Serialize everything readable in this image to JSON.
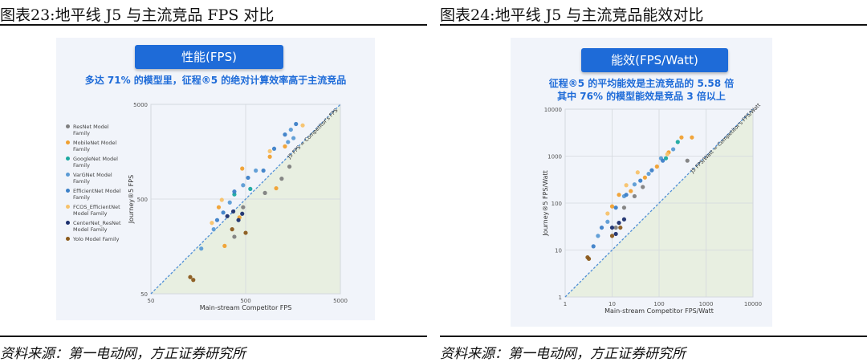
{
  "figures": [
    {
      "title": "图表23:地平线 J5 与主流竞品 FPS 对比",
      "source": "资料来源：第一电动网，方正证券研究所",
      "panel_title": "性能(FPS)",
      "subtitle_lines": [
        "多达 71% 的模型里，征程®5 的绝对计算效率高于主流竞品"
      ],
      "legend": [
        "ResNet Model Family",
        "MobileNet Model Family",
        "GoogleNet Model Family",
        "VarGNet Model Family",
        "EfficientNet Model Family",
        "FCOS_EfficientNet Model Family",
        "CenterNet_ResNet Model Family",
        "Yolo Model Family"
      ]
    },
    {
      "title": "图表24:地平线 J5 与主流竞品能效对比",
      "source": "资料来源：第一电动网，方正证券研究所",
      "panel_title": "能效(FPS/Watt)",
      "subtitle_lines": [
        "征程®5 的平均能效是主流竞品的 5.58 倍",
        "其中 76% 的模型能效是竞品 3 倍以上"
      ]
    }
  ],
  "colors": {
    "accent": "#1e6bd8",
    "series": [
      "#7f7f7f",
      "#f0a030",
      "#1ba9a0",
      "#5b9bd5",
      "#3c80c8",
      "#f7c26b",
      "#1c2f6e",
      "#8b5a1c"
    ]
  },
  "chart_data": [
    {
      "type": "scatter",
      "title": "性能(FPS)",
      "xlabel": "Main-stream Competitor FPS",
      "ylabel": "Journey®5 FPS",
      "xscale": "log",
      "yscale": "log",
      "xlim": [
        50,
        5000
      ],
      "ylim": [
        50,
        5000
      ],
      "x_ticks": [
        "50",
        "500",
        "5000"
      ],
      "y_ticks": [
        "50",
        "500",
        "5000"
      ],
      "reference_line": {
        "label": "J5 FPS = Competitor's FPS"
      },
      "grid": true,
      "legend_position": "left",
      "series": [
        {
          "name": "ResNet Model Family",
          "points": [
            [
              1450,
              1100
            ],
            [
              800,
              580
            ],
            [
              380,
              200
            ],
            [
              470,
              410
            ],
            [
              1200,
              820
            ]
          ]
        },
        {
          "name": "MobileNet Model Family",
          "points": [
            [
              900,
              1400
            ],
            [
              1300,
              1800
            ],
            [
              460,
              1050
            ],
            [
              260,
              410
            ],
            [
              1050,
              650
            ],
            [
              430,
              320
            ],
            [
              300,
              160
            ]
          ]
        },
        {
          "name": "GoogleNet Model Family",
          "points": [
            [
              560,
              640
            ],
            [
              380,
              560
            ]
          ]
        },
        {
          "name": "VarGNet Model Family",
          "points": [
            [
              1500,
              2700
            ],
            [
              1600,
              2200
            ],
            [
              1400,
              2000
            ],
            [
              640,
              1000
            ],
            [
              470,
              700
            ],
            [
              340,
              460
            ],
            [
              230,
              240
            ],
            [
              170,
              150
            ]
          ]
        },
        {
          "name": "EfficientNet Model Family",
          "points": [
            [
              1700,
              3100
            ],
            [
              1300,
              2400
            ],
            [
              1000,
              1700
            ],
            [
              770,
              1000
            ],
            [
              530,
              840
            ],
            [
              380,
              600
            ],
            [
              290,
              360
            ],
            [
              250,
              300
            ]
          ]
        },
        {
          "name": "FCOS_EfficientNet Model Family",
          "points": [
            [
              2000,
              3000
            ],
            [
              900,
              1600
            ],
            [
              280,
              490
            ],
            [
              220,
              280
            ]
          ]
        },
        {
          "name": "CenterNet_ResNet Model Family",
          "points": [
            [
              460,
              350
            ],
            [
              320,
              330
            ],
            [
              420,
              300
            ],
            [
              370,
              370
            ]
          ]
        },
        {
          "name": "Yolo Model Family",
          "points": [
            [
              500,
              220
            ],
            [
              360,
              240
            ],
            [
              140,
              70
            ],
            [
              130,
              75
            ]
          ]
        }
      ]
    },
    {
      "type": "scatter",
      "title": "能效(FPS/Watt)",
      "xlabel": "Main-stream Competitor FPS/Watt",
      "ylabel": "Journey®5 FPS/Watt",
      "xscale": "log",
      "yscale": "log",
      "xlim": [
        1,
        10000
      ],
      "ylim": [
        1,
        10000
      ],
      "x_ticks": [
        "1",
        "10",
        "100",
        "1000",
        "10000"
      ],
      "y_ticks": [
        "1",
        "10",
        "100",
        "1000",
        "10000"
      ],
      "reference_line": {
        "label": "J5 FPS/Watt = Competitor's FPS/Watt"
      },
      "grid": true,
      "series": [
        {
          "name": "ResNet Model Family",
          "points": [
            [
              45,
              220
            ],
            [
              30,
              140
            ],
            [
              18,
              80
            ],
            [
              12,
              30
            ],
            [
              400,
              800
            ]
          ]
        },
        {
          "name": "MobileNet Model Family",
          "points": [
            [
              500,
              2500
            ],
            [
              300,
              2500
            ],
            [
              160,
              1200
            ],
            [
              90,
              600
            ],
            [
              50,
              350
            ],
            [
              25,
              180
            ],
            [
              10,
              85
            ],
            [
              14,
              150
            ]
          ]
        },
        {
          "name": "GoogleNet Model Family",
          "points": [
            [
              250,
              2000
            ],
            [
              140,
              900
            ]
          ]
        },
        {
          "name": "VarGNet Model Family",
          "points": [
            [
              200,
              1400
            ],
            [
              110,
              900
            ],
            [
              60,
              420
            ],
            [
              30,
              250
            ],
            [
              18,
              140
            ],
            [
              8,
              40
            ],
            [
              5,
              20
            ]
          ]
        },
        {
          "name": "EfficientNet Model Family",
          "points": [
            [
              120,
              800
            ],
            [
              70,
              500
            ],
            [
              40,
              300
            ],
            [
              20,
              150
            ],
            [
              12,
              80
            ],
            [
              6,
              30
            ],
            [
              4,
              12
            ]
          ]
        },
        {
          "name": "FCOS_EfficientNet Model Family",
          "points": [
            [
              150,
              1100
            ],
            [
              35,
              450
            ],
            [
              20,
              240
            ],
            [
              8,
              60
            ]
          ]
        },
        {
          "name": "CenterNet_ResNet Model Family",
          "points": [
            [
              10,
              30
            ],
            [
              14,
              38
            ],
            [
              18,
              45
            ],
            [
              12,
              22
            ]
          ]
        },
        {
          "name": "Yolo Model Family",
          "points": [
            [
              15,
              30
            ],
            [
              10,
              20
            ],
            [
              3,
              7
            ],
            [
              3.2,
              6.5
            ]
          ]
        }
      ]
    }
  ]
}
